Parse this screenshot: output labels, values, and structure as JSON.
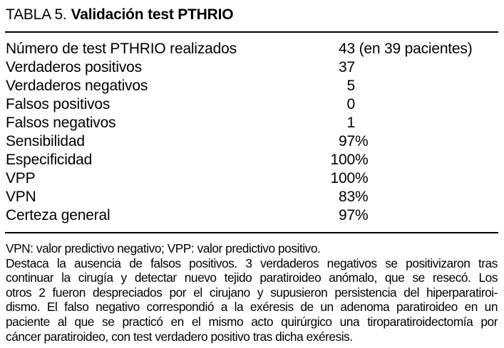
{
  "caption": {
    "label": "TABLA 5.",
    "title": "Validación test PTHRIO"
  },
  "table": {
    "rows": [
      {
        "label": "Número de test PTHRIO realizados",
        "num": "43",
        "suffix": " (en 39 pacientes)"
      },
      {
        "label": "Verdaderos positivos",
        "num": "37",
        "suffix": ""
      },
      {
        "label": "Verdaderos negativos",
        "num": "5",
        "suffix": ""
      },
      {
        "label": "Falsos positivos",
        "num": "0",
        "suffix": ""
      },
      {
        "label": "Falsos negativos",
        "num": "1",
        "suffix": ""
      },
      {
        "label": "Sensibilidad",
        "num": "97",
        "suffix": "%"
      },
      {
        "label": "Especificidad",
        "num": "100",
        "suffix": "%"
      },
      {
        "label": "VPP",
        "num": "100",
        "suffix": "%"
      },
      {
        "label": "VPN",
        "num": "83",
        "suffix": "%"
      },
      {
        "label": "Certeza general",
        "num": "97",
        "suffix": "%"
      }
    ]
  },
  "footnote": {
    "abbrev": "VPN: valor predictivo negativo; VPP: valor predictivo positivo.",
    "lines": [
      "Destaca la ausencia de falsos positivos. 3 verdaderos negativos se positivizaron tras",
      "continuar la cirugía y detectar nuevo tejido paratiroideo anómalo, que se resecó. Los",
      "otros 2 fueron despreciados por el cirujano y supusieron persistencia del hiperparatiroi-",
      "dismo. El falso negativo correspondió a la exéresis de un adenoma paratiroideo en un",
      "paciente al que se practicó en el mismo acto quirúrgico una tiroparatiroidectomía por",
      "cáncer paratiroideo, con test verdadero positivo tras dicha exéresis."
    ]
  }
}
